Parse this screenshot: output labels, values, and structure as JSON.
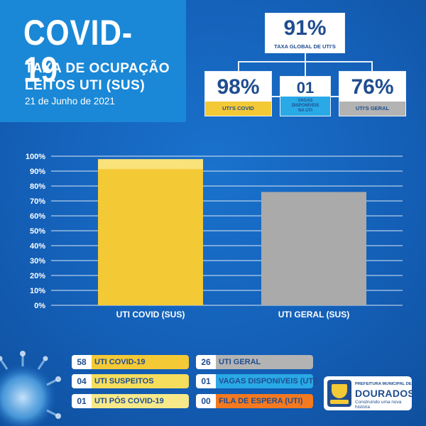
{
  "header": {
    "title": "COVID-19",
    "subtitle_line1": "TAXA DE OCUPAÇÃO",
    "subtitle_line2": "LEITOS UTI (SUS)",
    "date": "21 de Junho de 2021"
  },
  "stats": {
    "global": {
      "value": "91%",
      "label": "TAXA GLOBAL DE UTI'S"
    },
    "covid": {
      "value": "98%",
      "label": "UTI'S COVID"
    },
    "vagas": {
      "value": "01",
      "label_line1": "VAGAS",
      "label_line2": "DISPONÍVEIS",
      "label_line3": "NA UTI"
    },
    "geral": {
      "value": "76%",
      "label": "UTI'S GERAL"
    }
  },
  "chart_data": {
    "type": "bar",
    "categories": [
      "UTI COVID (SUS)",
      "UTI GERAL (SUS)"
    ],
    "values": [
      98,
      76
    ],
    "ylim": [
      0,
      100
    ],
    "yticks": [
      "0%",
      "10%",
      "20%",
      "30%",
      "40%",
      "50%",
      "60%",
      "70%",
      "80%",
      "90%",
      "100%"
    ],
    "grid": true,
    "colors": [
      "#f4c936",
      "#aaaaaa"
    ]
  },
  "legend": [
    {
      "num": "58",
      "label": "UTI COVID-19",
      "color": "#f4c936"
    },
    {
      "num": "04",
      "label": "UTI SUSPEITOS",
      "color": "#f7dd5c"
    },
    {
      "num": "01",
      "label": "UTI PÓS COVID-19",
      "color": "#f7e98a"
    },
    {
      "num": "26",
      "label": "UTI GERAL",
      "color": "#b3b3b3"
    },
    {
      "num": "01",
      "label": "VAGAS DISPONIVEIS (UTI)",
      "color": "#29a9e6"
    },
    {
      "num": "00",
      "label": "FILA DE ESPERA (UTI)",
      "color": "#f47920"
    }
  ],
  "logo": {
    "line1": "PREFEITURA MUNICIPAL DE",
    "line2": "DOURADOS",
    "line3": "Construindo uma nova história"
  },
  "colors": {
    "background": "#1565c0",
    "title_panel": "#1a88d6",
    "text_dark": "#1f4d8f",
    "accent_yellow": "#f4c936",
    "accent_grey": "#b3b3b3",
    "accent_cyan": "#29a9e6",
    "accent_orange": "#f47920"
  }
}
